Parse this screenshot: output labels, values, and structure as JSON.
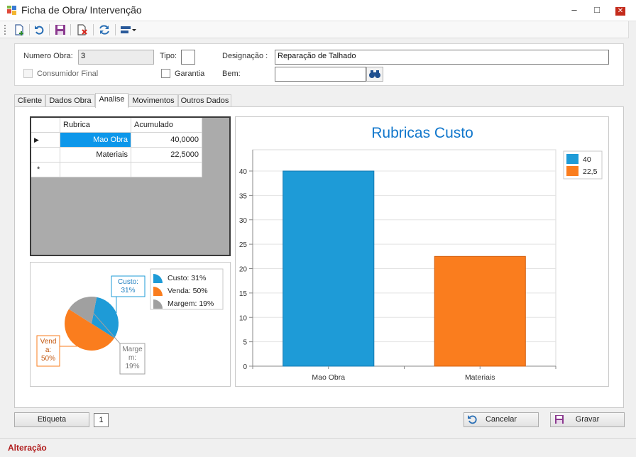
{
  "window": {
    "title": "Ficha de Obra/ Intervenção",
    "minimize": "–",
    "maximize": "□",
    "close": "✕"
  },
  "toolbar": {
    "icons": [
      "new-document-icon",
      "undo-icon",
      "save-icon",
      "delete-document-icon",
      "refresh-icon",
      "layout-dropdown-icon"
    ]
  },
  "header": {
    "numero_obra_label": "Numero Obra:",
    "numero_obra_value": "3",
    "tipo_label": "Tipo:",
    "tipo_value": "",
    "designacao_label": "Designação :",
    "designacao_value": "Reparação de Talhado",
    "consumidor_final_label": "Consumidor Final",
    "consumidor_final_checked": false,
    "garantia_label": "Garantia",
    "garantia_checked": false,
    "bem_label": "Bem:",
    "bem_value": ""
  },
  "tabs": [
    {
      "label": "Cliente",
      "active": false
    },
    {
      "label": "Dados Obra",
      "active": false
    },
    {
      "label": "Analise",
      "active": true
    },
    {
      "label": "Movimentos",
      "active": false
    },
    {
      "label": "Outros Dados",
      "active": false
    }
  ],
  "grid": {
    "columns": [
      "Rubrica",
      "Acumulado"
    ],
    "rows": [
      {
        "indicator": "▶",
        "rubrica": "Mao Obra",
        "acumulado": "40,0000",
        "selected": true
      },
      {
        "indicator": "",
        "rubrica": "Materiais",
        "acumulado": "22,5000",
        "selected": false
      }
    ],
    "new_row_indicator": "*"
  },
  "pie": {
    "slices": [
      {
        "name": "Custo",
        "percent": 31,
        "color": "#1e9bd7",
        "label": "Custo:\n31%",
        "legend": "Custo: 31%"
      },
      {
        "name": "Venda",
        "percent": 50,
        "color": "#fa7d1e",
        "label": "Vend\na:\n50%",
        "legend": "Venda: 50%"
      },
      {
        "name": "Margem",
        "percent": 19,
        "color": "#a0a0a0",
        "label": "Marge\nm:\n19%",
        "legend": "Margem: 19%"
      }
    ]
  },
  "chart_data": {
    "type": "bar",
    "title": "Rubricas Custo",
    "categories": [
      "Mao Obra",
      "Materiais"
    ],
    "values": [
      40,
      22.5
    ],
    "colors": [
      "#1e9bd7",
      "#fa7d1e"
    ],
    "ylim": [
      0,
      40
    ],
    "yticks": [
      "0",
      "5",
      "10",
      "15",
      "20",
      "25",
      "30",
      "35",
      "40"
    ],
    "legend": [
      "40",
      "22,5"
    ],
    "legend_position": "top-right",
    "grid": true
  },
  "footer": {
    "etiqueta_label": "Etiqueta",
    "page_value": "1",
    "cancelar_label": "Cancelar",
    "gravar_label": "Gravar"
  },
  "status": {
    "text": "Alteração"
  }
}
